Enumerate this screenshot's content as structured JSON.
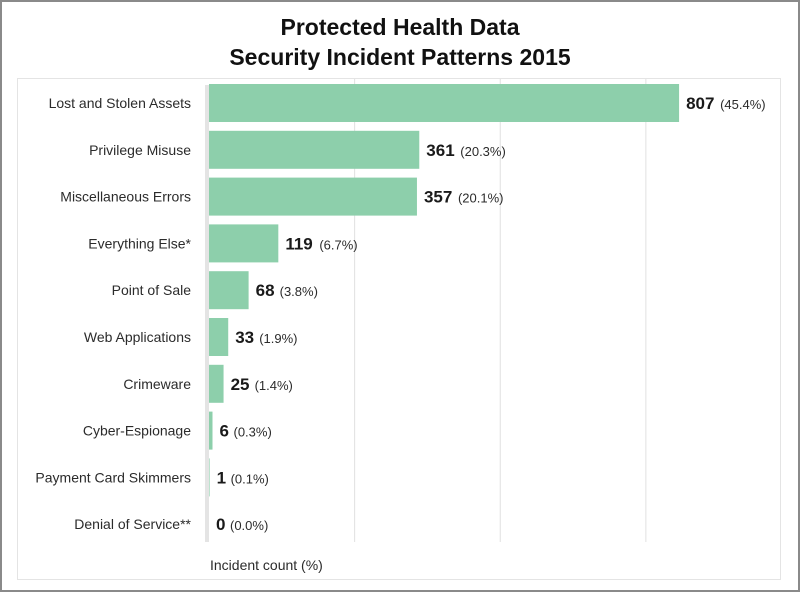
{
  "chart_data": {
    "type": "bar",
    "orientation": "horizontal",
    "title": "Protected Health Data",
    "subtitle": "Security Incident Patterns 2015",
    "xlabel": "Incident count (%)",
    "ylabel": "",
    "xlim": [
      0,
      900
    ],
    "grid": true,
    "colors": {
      "bar": "#8dcfab",
      "axis": "#e4e4e4",
      "grid": "#e0e0e0"
    },
    "categories": [
      "Lost and Stolen Assets",
      "Privilege Misuse",
      "Miscellaneous Errors",
      "Everything Else*",
      "Point of Sale",
      "Web Applications",
      "Crimeware",
      "Cyber-Espionage",
      "Payment Card Skimmers",
      "Denial of Service**"
    ],
    "values": [
      807,
      361,
      357,
      119,
      68,
      33,
      25,
      6,
      1,
      0
    ],
    "percent_labels": [
      "(45.4%)",
      "(20.3%)",
      "(20.1%)",
      "(6.7%)",
      "(3.8%)",
      "(1.9%)",
      "(1.4%)",
      "(0.3%)",
      "(0.1%)",
      "(0.0%)"
    ]
  }
}
